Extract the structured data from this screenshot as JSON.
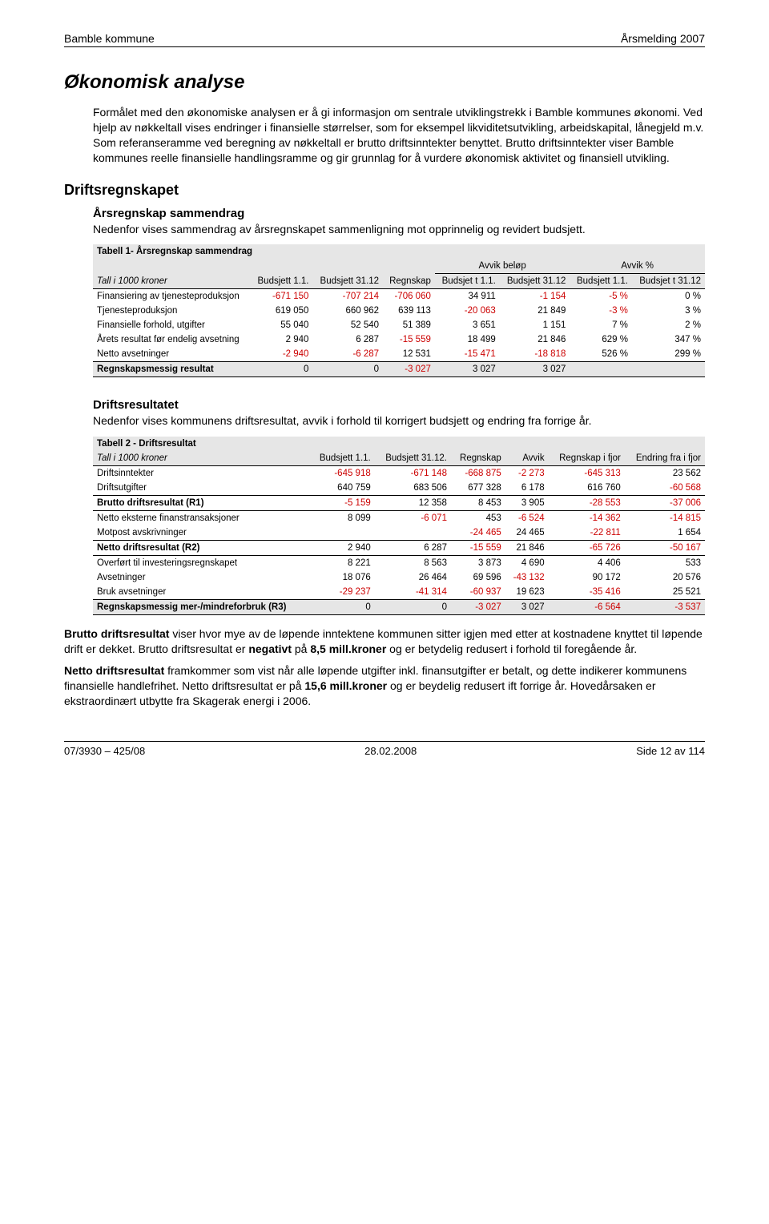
{
  "header": {
    "left": "Bamble kommune",
    "right": "Årsmelding 2007"
  },
  "title": "Økonomisk analyse",
  "intro": "Formålet med den økonomiske analysen er å gi informasjon om sentrale utviklingstrekk i Bamble kommunes økonomi. Ved hjelp av nøkkeltall vises endringer i finansielle størrelser, som for eksempel likviditetsutvikling, arbeidskapital, lånegjeld m.v. Som referanseramme ved beregning av nøkkeltall er brutto driftsinntekter benyttet. Brutto driftsinntekter viser Bamble kommunes reelle finansielle handlingsramme og gir grunnlag for å vurdere økonomisk aktivitet og finansiell utvikling.",
  "section1": {
    "heading": "Driftsregnskapet",
    "sub_heading": "Årsregnskap sammendrag",
    "sub_text": "Nedenfor vises sammendrag av årsregnskapet sammenligning mot opprinnelig og revidert budsjett."
  },
  "table1": {
    "title": "Tabell 1- Årsregnskap sammendrag",
    "group_avvik_belop": "Avvik beløp",
    "group_avvik_pct": "Avvik %",
    "row_header_label": "Tall i 1000 kroner",
    "cols": [
      "Budsjett 1.1.",
      "Budsjett 31.12",
      "Regnskap",
      "Budsjet t 1.1.",
      "Budsjett 31.12",
      "Budsjett 1.1.",
      "Budsjet t 31.12"
    ],
    "rows": [
      {
        "label": "Finansiering av tjenesteproduksjon",
        "v": [
          "-671 150",
          "-707 214",
          "-706 060",
          "34 911",
          "-1 154",
          "-5 %",
          "0 %"
        ],
        "neg": [
          1,
          1,
          1,
          0,
          1,
          1,
          0
        ]
      },
      {
        "label": "Tjenesteproduksjon",
        "v": [
          "619 050",
          "660 962",
          "639 113",
          "-20 063",
          "21 849",
          "-3 %",
          "3 %"
        ],
        "neg": [
          0,
          0,
          0,
          1,
          0,
          1,
          0
        ]
      },
      {
        "label": "Finansielle forhold, utgifter",
        "v": [
          "55 040",
          "52 540",
          "51 389",
          "3 651",
          "1 151",
          "7 %",
          "2 %"
        ],
        "neg": [
          0,
          0,
          0,
          0,
          0,
          0,
          0
        ]
      },
      {
        "label": "Årets resultat før endelig avsetning",
        "v": [
          "2 940",
          "6 287",
          "-15 559",
          "18 499",
          "21 846",
          "629 %",
          "347 %"
        ],
        "neg": [
          0,
          0,
          1,
          0,
          0,
          0,
          0
        ]
      },
      {
        "label": "Netto avsetninger",
        "v": [
          "-2 940",
          "-6 287",
          "12 531",
          "-15 471",
          "-18 818",
          "526 %",
          "299 %"
        ],
        "neg": [
          1,
          1,
          0,
          1,
          1,
          0,
          0
        ]
      }
    ],
    "total": {
      "label": "Regnskapsmessig resultat",
      "v": [
        "0",
        "0",
        "-3 027",
        "3 027",
        "3 027",
        "",
        ""
      ],
      "neg": [
        0,
        0,
        1,
        0,
        0,
        0,
        0
      ]
    }
  },
  "section2": {
    "sub_heading": "Driftsresultatet",
    "sub_text": "Nedenfor vises kommunens driftsresultat, avvik i forhold til korrigert budsjett og endring fra forrige år."
  },
  "table2": {
    "title": "Tabell 2 - Driftsresultat",
    "row_header_label": "Tall i 1000 kroner",
    "cols": [
      "Budsjett 1.1.",
      "Budsjett 31.12.",
      "Regnskap",
      "Avvik",
      "Regnskap i fjor",
      "Endring fra i fjor"
    ],
    "rows1": [
      {
        "label": "Driftsinntekter",
        "v": [
          "-645 918",
          "-671 148",
          "-668 875",
          "-2 273",
          "-645 313",
          "23 562"
        ],
        "neg": [
          1,
          1,
          1,
          1,
          1,
          0
        ]
      },
      {
        "label": "Driftsutgifter",
        "v": [
          "640 759",
          "683 506",
          "677 328",
          "6 178",
          "616 760",
          "-60 568"
        ],
        "neg": [
          0,
          0,
          0,
          0,
          0,
          1
        ]
      }
    ],
    "brutto": {
      "label": "Brutto driftsresultat (R1)",
      "v": [
        "-5 159",
        "12 358",
        "8 453",
        "3 905",
        "-28 553",
        "-37 006"
      ],
      "neg": [
        1,
        0,
        0,
        0,
        1,
        1
      ]
    },
    "rows2": [
      {
        "label": "Netto eksterne finanstransaksjoner",
        "v": [
          "8 099",
          "-6 071",
          "453",
          "-6 524",
          "-14 362",
          "-14 815"
        ],
        "neg": [
          0,
          1,
          0,
          1,
          1,
          1
        ]
      },
      {
        "label": "Motpost avskrivninger",
        "v": [
          "",
          "",
          "-24 465",
          "24 465",
          "-22 811",
          "1 654"
        ],
        "neg": [
          0,
          0,
          1,
          0,
          1,
          0
        ]
      }
    ],
    "netto": {
      "label": "Netto driftsresultat (R2)",
      "v": [
        "2 940",
        "6 287",
        "-15 559",
        "21 846",
        "-65 726",
        "-50 167"
      ],
      "neg": [
        0,
        0,
        1,
        0,
        1,
        1
      ]
    },
    "rows3": [
      {
        "label": "Overført til investeringsregnskapet",
        "v": [
          "8 221",
          "8 563",
          "3 873",
          "4 690",
          "4 406",
          "533"
        ],
        "neg": [
          0,
          0,
          0,
          0,
          0,
          0
        ]
      },
      {
        "label": "Avsetninger",
        "v": [
          "18 076",
          "26 464",
          "69 596",
          "-43 132",
          "90 172",
          "20 576"
        ],
        "neg": [
          0,
          0,
          0,
          1,
          0,
          0
        ]
      },
      {
        "label": "Bruk avsetninger",
        "v": [
          "-29 237",
          "-41 314",
          "-60 937",
          "19 623",
          "-35 416",
          "25 521"
        ],
        "neg": [
          1,
          1,
          1,
          0,
          1,
          0
        ]
      }
    ],
    "total": {
      "label": "Regnskapsmessig mer-/mindreforbruk (R3)",
      "v": [
        "0",
        "0",
        "-3 027",
        "3 027",
        "-6 564",
        "-3 537"
      ],
      "neg": [
        0,
        0,
        1,
        0,
        1,
        1
      ]
    }
  },
  "para1_a": "Brutto driftsresultat",
  "para1_b": " viser hvor mye av de løpende inntektene kommunen sitter igjen med etter at kostnadene knyttet til løpende drift er dekket. Brutto driftsresultat er ",
  "para1_c": "negativt",
  "para1_d": " på ",
  "para1_e": "8,5 mill.kroner",
  "para1_f": " og er betydelig redusert i forhold til foregående år.",
  "para2_a": "Netto driftsresultat",
  "para2_b": " framkommer som vist når alle løpende utgifter inkl. finansutgifter er betalt, og dette indikerer kommunens finansielle handlefrihet. Netto driftsresultat er på ",
  "para2_c": "15,6 mill.kroner",
  "para2_d": " og er beydelig redusert ift forrige år. Hovedårsaken er ekstraordinært utbytte fra Skagerak energi i 2006.",
  "footer": {
    "left": "07/3930 – 425/08",
    "mid": "28.02.2008",
    "right": "Side 12 av 114"
  }
}
